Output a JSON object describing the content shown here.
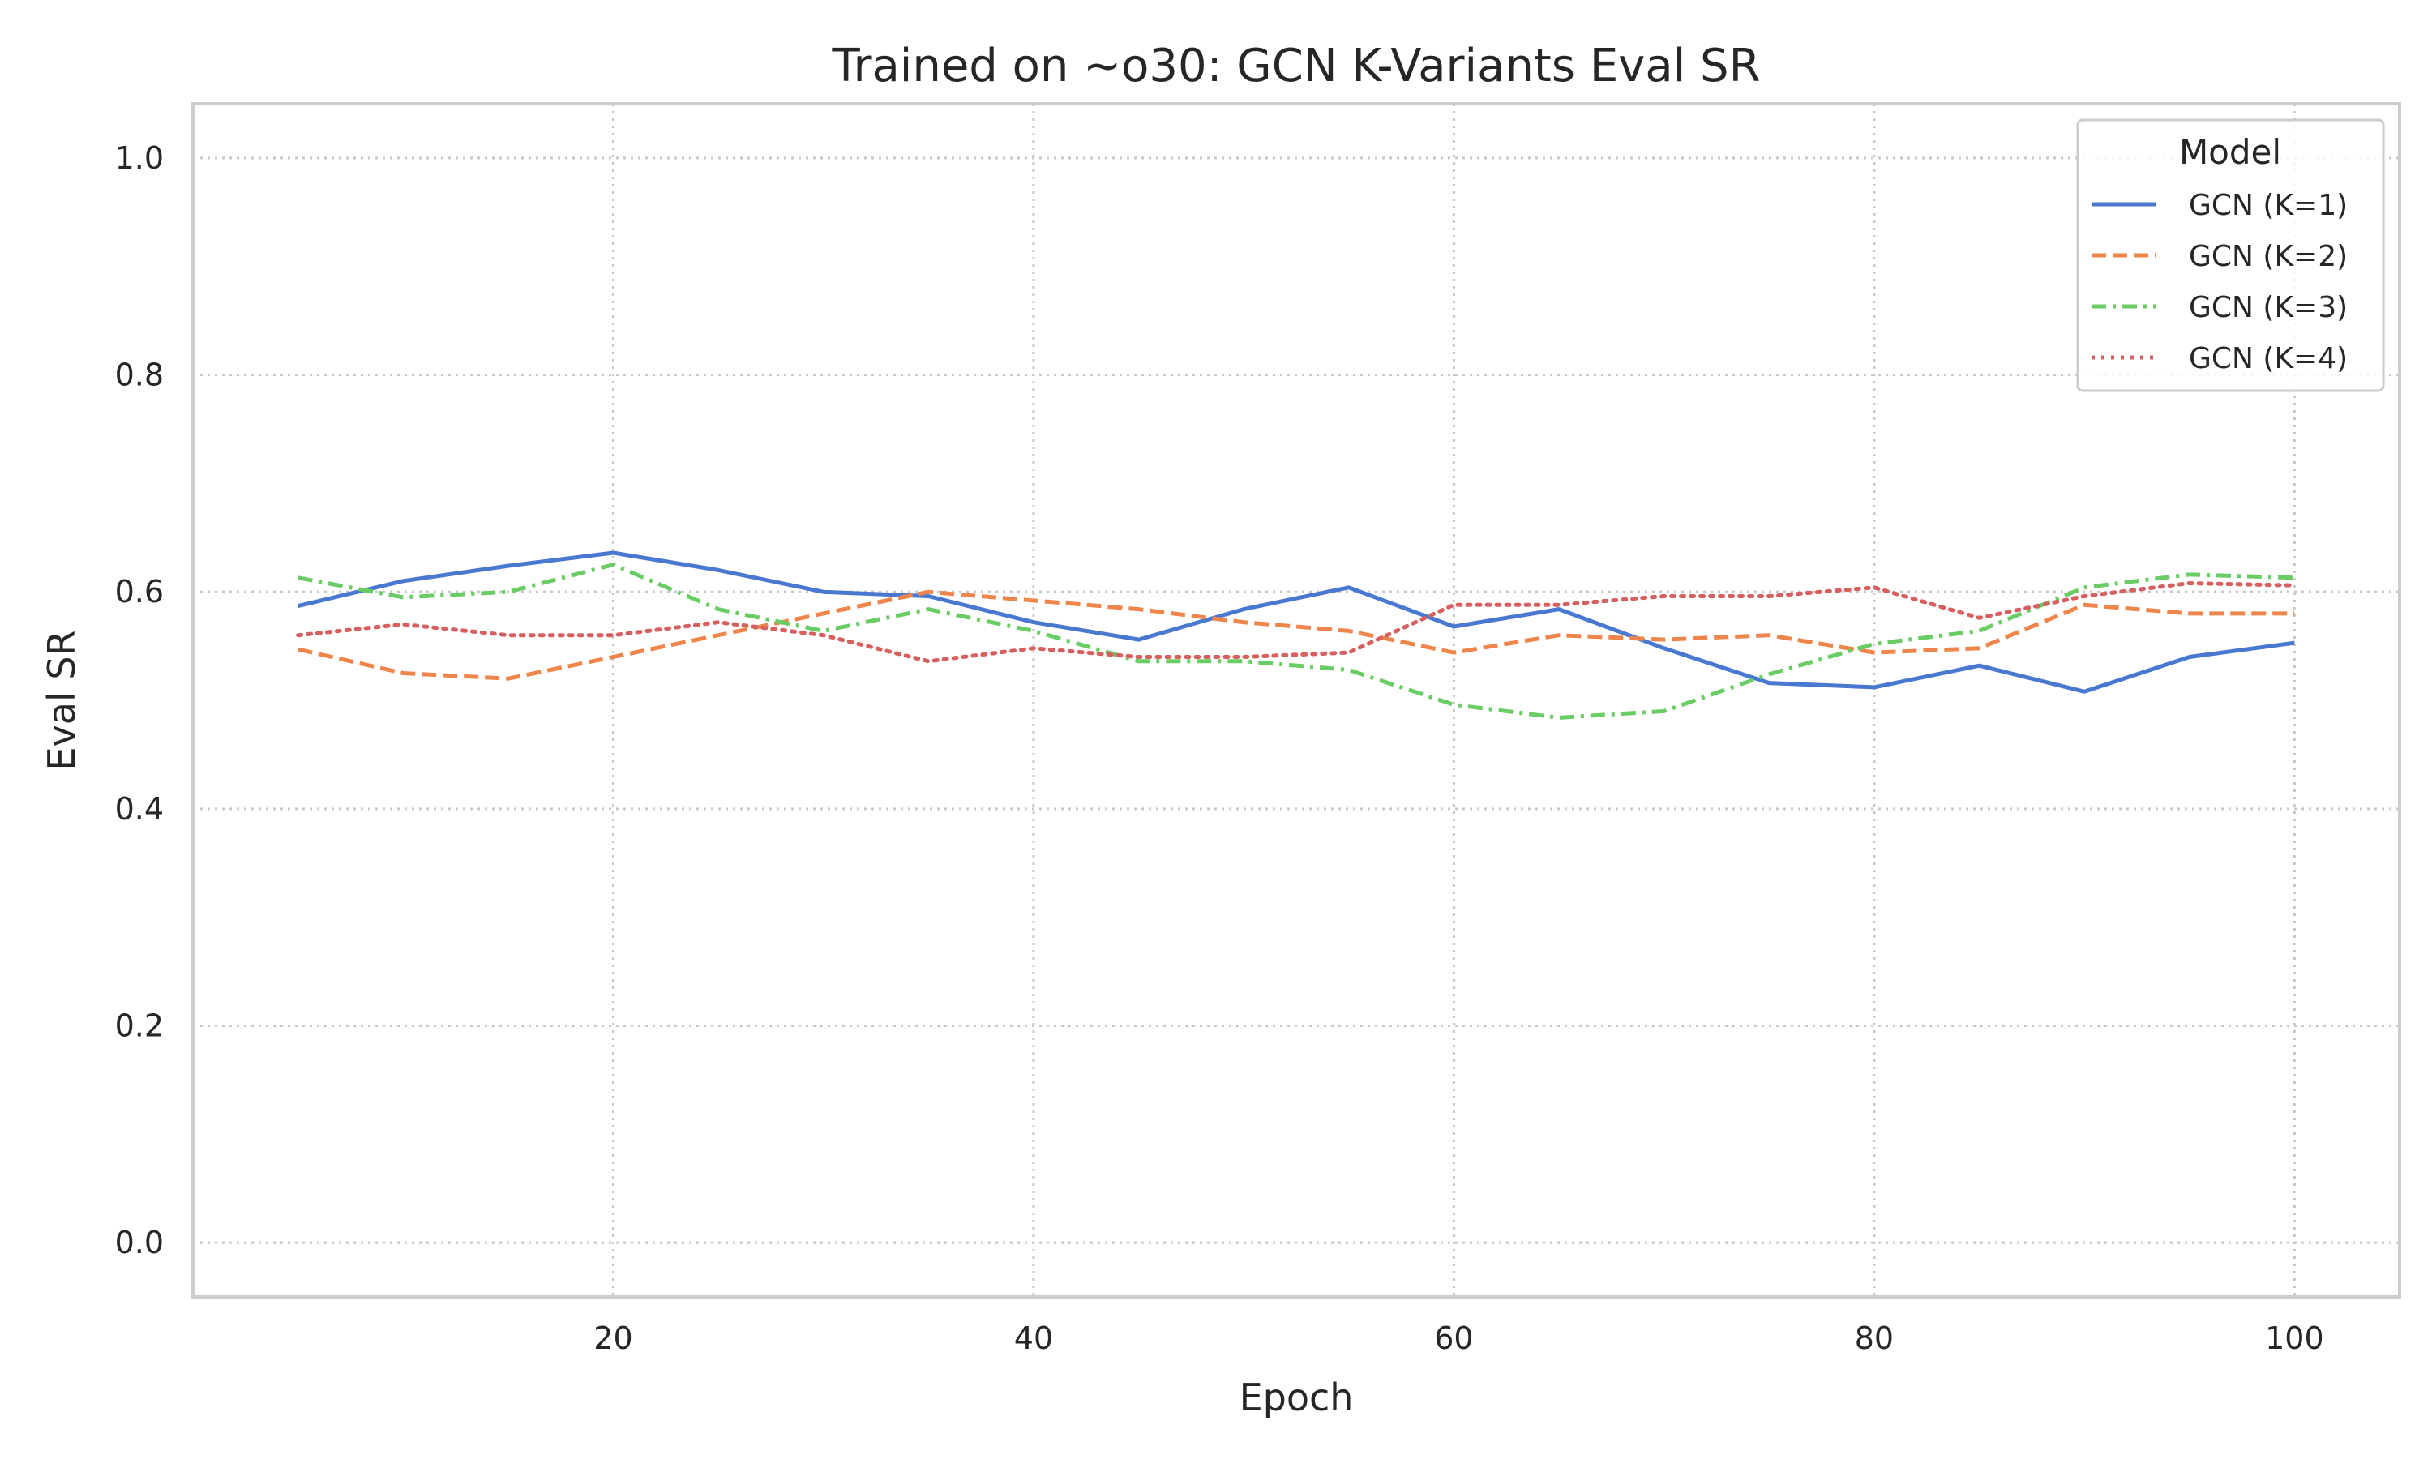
{
  "chart_data": {
    "type": "line",
    "title": "Trained on ~o30: GCN K-Variants Eval SR",
    "xlabel": "Epoch",
    "ylabel": "Eval SR",
    "xlim": [
      0,
      105
    ],
    "ylim": [
      -0.05,
      1.05
    ],
    "xticks": [
      20,
      40,
      60,
      80,
      100
    ],
    "yticks": [
      0.0,
      0.2,
      0.4,
      0.6,
      0.8,
      1.0
    ],
    "ytick_labels": [
      "0.0",
      "0.2",
      "0.4",
      "0.6",
      "0.8",
      "1.0"
    ],
    "grid": true,
    "legend_title": "Model",
    "legend_position": "top-right",
    "x": [
      5,
      10,
      15,
      20,
      25,
      30,
      35,
      40,
      45,
      50,
      55,
      60,
      65,
      70,
      75,
      80,
      85,
      90,
      95,
      100
    ],
    "series": [
      {
        "name": "GCN (K=1)",
        "color": "#4878d0",
        "dash": "solid",
        "values": [
          0.587,
          0.61,
          0.624,
          0.636,
          0.62,
          0.6,
          0.596,
          0.572,
          0.556,
          0.584,
          0.604,
          0.568,
          0.584,
          0.548,
          0.516,
          0.512,
          0.532,
          0.508,
          0.54,
          0.553
        ]
      },
      {
        "name": "GCN (K=2)",
        "color": "#ee854a",
        "dash": "dashed",
        "values": [
          0.547,
          0.525,
          0.52,
          0.54,
          0.56,
          0.58,
          0.6,
          0.592,
          0.584,
          0.572,
          0.564,
          0.544,
          0.56,
          0.556,
          0.56,
          0.544,
          0.548,
          0.588,
          0.58,
          0.58
        ]
      },
      {
        "name": "GCN (K=3)",
        "color": "#6acc64",
        "dash": "dashdot",
        "values": [
          0.613,
          0.595,
          0.6,
          0.625,
          0.584,
          0.564,
          0.584,
          0.564,
          0.536,
          0.536,
          0.528,
          0.496,
          0.484,
          0.49,
          0.524,
          0.552,
          0.564,
          0.604,
          0.616,
          0.613
        ]
      },
      {
        "name": "GCN (K=4)",
        "color": "#d65f5f",
        "dash": "dotted",
        "values": [
          0.56,
          0.57,
          0.56,
          0.56,
          0.572,
          0.56,
          0.536,
          0.548,
          0.54,
          0.54,
          0.544,
          0.588,
          0.588,
          0.596,
          0.596,
          0.604,
          0.576,
          0.596,
          0.608,
          0.606
        ]
      }
    ]
  }
}
